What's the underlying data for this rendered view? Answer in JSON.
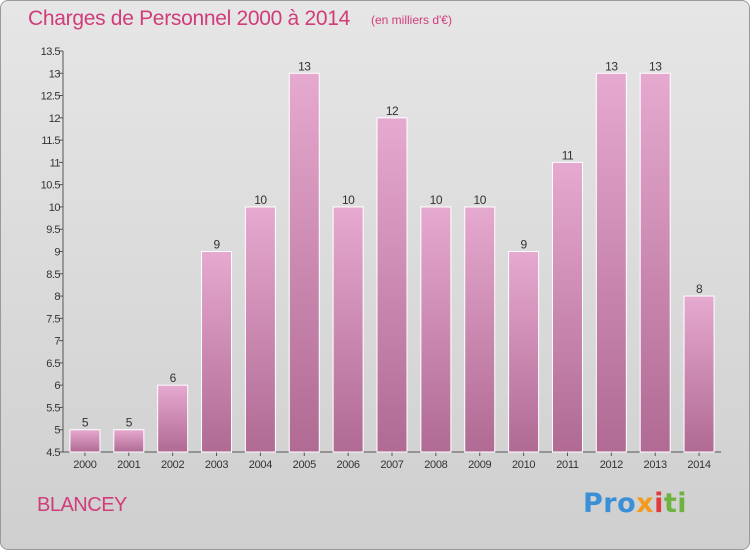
{
  "header": {
    "title": "Charges de Personnel 2000 à 2014",
    "unit": "(en milliers d'€)"
  },
  "footer": {
    "place": "BLANCEY",
    "logo_text": "Proxiti",
    "logo_parts": [
      "Pro",
      "x",
      "i",
      "ti"
    ]
  },
  "colors": {
    "bar_top": "#e6a9cf",
    "bar_bottom": "#b06a93",
    "accent": "#d13c7a"
  },
  "chart_data": {
    "type": "bar",
    "title": "Charges de Personnel 2000 à 2014",
    "subtitle": "(en milliers d'€)",
    "xlabel": "",
    "ylabel": "",
    "categories": [
      "2000",
      "2001",
      "2002",
      "2003",
      "2004",
      "2005",
      "2006",
      "2007",
      "2008",
      "2009",
      "2010",
      "2011",
      "2012",
      "2013",
      "2014"
    ],
    "values": [
      5,
      5,
      6,
      9,
      10,
      13,
      10,
      12,
      10,
      10,
      9,
      11,
      13,
      13,
      8
    ],
    "data_labels": [
      "5",
      "5",
      "6",
      "9",
      "10",
      "13",
      "10",
      "12",
      "10",
      "10",
      "9",
      "11",
      "13",
      "13",
      "8"
    ],
    "ylim": [
      4.5,
      13.5
    ],
    "yticks": [
      "4.5",
      "5",
      "5.5",
      "6",
      "6.5",
      "7",
      "7.5",
      "8",
      "8.5",
      "9",
      "9.5",
      "10",
      "10.5",
      "11",
      "11.5",
      "12",
      "12.5",
      "13",
      "13.5"
    ],
    "grid": false,
    "legend": "none"
  }
}
